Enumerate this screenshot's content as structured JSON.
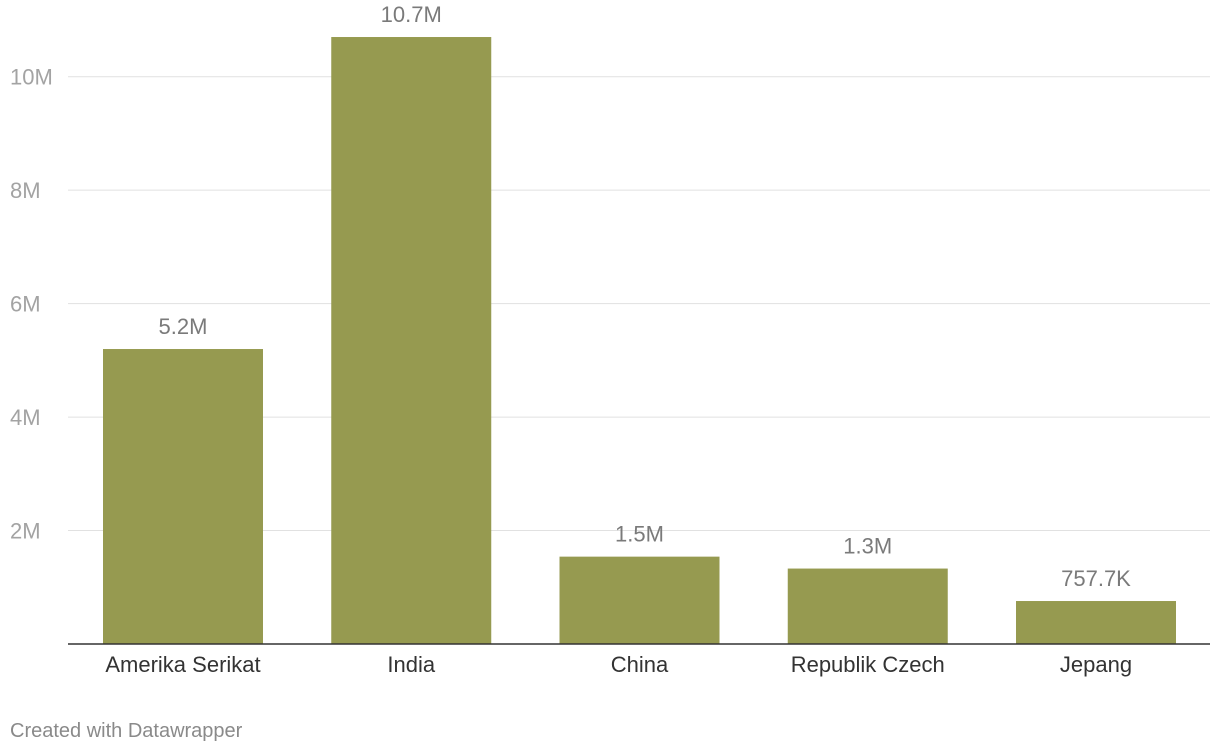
{
  "chart_data": {
    "type": "bar",
    "categories": [
      "Amerika Serikat",
      "India",
      "China",
      "Republik Czech",
      "Jepang"
    ],
    "values": [
      5200000,
      10700000,
      1540000,
      1330000,
      757700
    ],
    "data_labels": [
      "5.2M",
      "10.7M",
      "1.5M",
      "1.3M",
      "757.7K"
    ],
    "y_ticks": [
      2000000,
      4000000,
      6000000,
      8000000,
      10000000
    ],
    "y_tick_labels": [
      "2M",
      "4M",
      "6M",
      "8M",
      "10M"
    ],
    "ylim": [
      0,
      11000000
    ],
    "grid": true,
    "bar_color": "#969a50"
  },
  "footer": {
    "credit": "Created with Datawrapper"
  }
}
